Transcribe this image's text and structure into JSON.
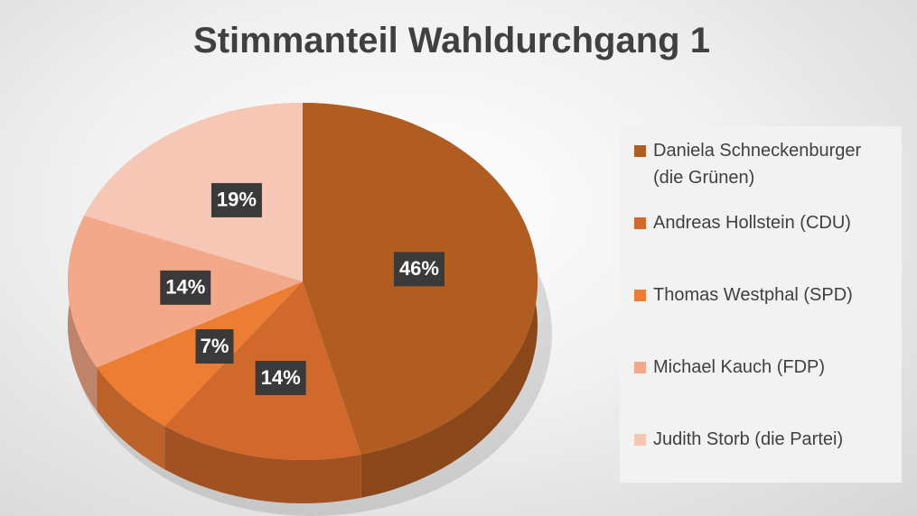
{
  "chart_data": {
    "type": "pie",
    "title": "Stimmanteil Wahldurchgang 1",
    "categories": [
      "Daniela Schneckenburger (die Grünen)",
      "Andreas Hollstein (CDU)",
      "Thomas Westphal (SPD)",
      "Michael Kauch (FDP)",
      "Judith Storb (die Partei)"
    ],
    "values": [
      46,
      14,
      7,
      14,
      19
    ],
    "value_labels": [
      "46%",
      "14%",
      "7%",
      "14%",
      "19%"
    ],
    "colors": [
      "#b15c21",
      "#d0692b",
      "#ee7d34",
      "#f3a889",
      "#f7c7b6"
    ],
    "legend": "right"
  }
}
